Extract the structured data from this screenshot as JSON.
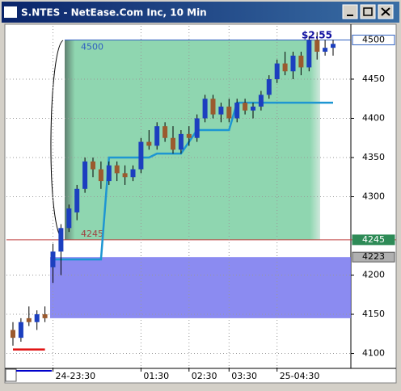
{
  "window_title": "S.NTES - NetEase.Com Inc, 10 Min",
  "chart_data": {
    "type": "candlestick",
    "annotation": "$2.55",
    "categories": [
      null,
      null,
      null,
      null,
      null,
      "24-23:30",
      null,
      null,
      null,
      null,
      null,
      null,
      null,
      null,
      null,
      null,
      "01:30",
      null,
      null,
      null,
      null,
      null,
      "02:30",
      null,
      null,
      null,
      null,
      "03:30",
      null,
      null,
      null,
      null,
      null,
      "25-04:30",
      null,
      null,
      null,
      null,
      null,
      null,
      null
    ],
    "open": [
      4130,
      4120,
      4145,
      4140,
      4150,
      4210,
      4230,
      4260,
      4280,
      4310,
      4345,
      4335,
      4320,
      4340,
      4330,
      4325,
      4335,
      4370,
      4365,
      4390,
      4375,
      4360,
      4380,
      4375,
      4400,
      4425,
      4405,
      4415,
      4400,
      4420,
      4410,
      4415,
      4430,
      4450,
      4470,
      4460,
      4480,
      4465,
      4500,
      4485,
      4490
    ],
    "high": [
      4140,
      4145,
      4160,
      4155,
      4160,
      4240,
      4265,
      4290,
      4315,
      4350,
      4350,
      4345,
      4345,
      4345,
      4340,
      4340,
      4375,
      4385,
      4395,
      4395,
      4390,
      4385,
      4390,
      4405,
      4430,
      4430,
      4420,
      4425,
      4425,
      4425,
      4420,
      4435,
      4455,
      4475,
      4485,
      4485,
      4485,
      4505,
      4510,
      4500,
      4500
    ],
    "low": [
      4110,
      4115,
      4135,
      4130,
      4140,
      4190,
      4200,
      4255,
      4270,
      4305,
      4325,
      4310,
      4315,
      4320,
      4315,
      4320,
      4330,
      4360,
      4360,
      4370,
      4355,
      4355,
      4365,
      4370,
      4395,
      4400,
      4395,
      4395,
      4395,
      4405,
      4400,
      4410,
      4425,
      4445,
      4455,
      4450,
      4455,
      4460,
      4475,
      4480,
      4480
    ],
    "close": [
      4120,
      4140,
      4140,
      4150,
      4145,
      4230,
      4260,
      4285,
      4310,
      4345,
      4335,
      4320,
      4340,
      4330,
      4325,
      4335,
      4370,
      4365,
      4390,
      4375,
      4360,
      4380,
      4375,
      4400,
      4425,
      4405,
      4415,
      4400,
      4420,
      4410,
      4415,
      4430,
      4450,
      4470,
      4460,
      4480,
      4465,
      4500,
      4485,
      4490,
      4495
    ],
    "up_color": "#1c3fbf",
    "down_color": "#9b5a2e",
    "lines": [
      {
        "color": "#1e96d2",
        "values": [
          null,
          null,
          null,
          null,
          null,
          4220,
          4220,
          4220,
          4220,
          4220,
          4220,
          4220,
          4350,
          4350,
          4350,
          4350,
          4350,
          4350,
          4355,
          4355,
          4355,
          4355,
          4370,
          4385,
          4385,
          4385,
          4385,
          4385,
          4420,
          4420,
          4420,
          4420,
          4420,
          4420,
          4420,
          4420,
          4420,
          4420,
          4420,
          4420,
          4420
        ]
      },
      {
        "color": "#e01010",
        "values": [
          4105,
          4105,
          4105,
          4105,
          4105,
          null,
          null,
          null,
          null,
          null,
          null,
          null,
          null,
          null,
          null,
          null,
          null,
          null,
          null,
          null,
          null,
          null,
          null,
          null,
          null,
          null,
          null,
          null,
          null,
          null,
          null,
          null,
          null,
          null,
          null,
          null,
          null,
          null,
          null,
          null,
          null
        ]
      }
    ],
    "zones": [
      {
        "top": 4500,
        "bottom": 4245,
        "color": "#66cc99"
      },
      {
        "top": 4223,
        "bottom": 4145,
        "color": "#7777ee"
      }
    ],
    "ylim": [
      4082,
      4518
    ],
    "yticks": [
      4100,
      4150,
      4200,
      4300,
      4350,
      4400,
      4450
    ],
    "grid": true
  }
}
